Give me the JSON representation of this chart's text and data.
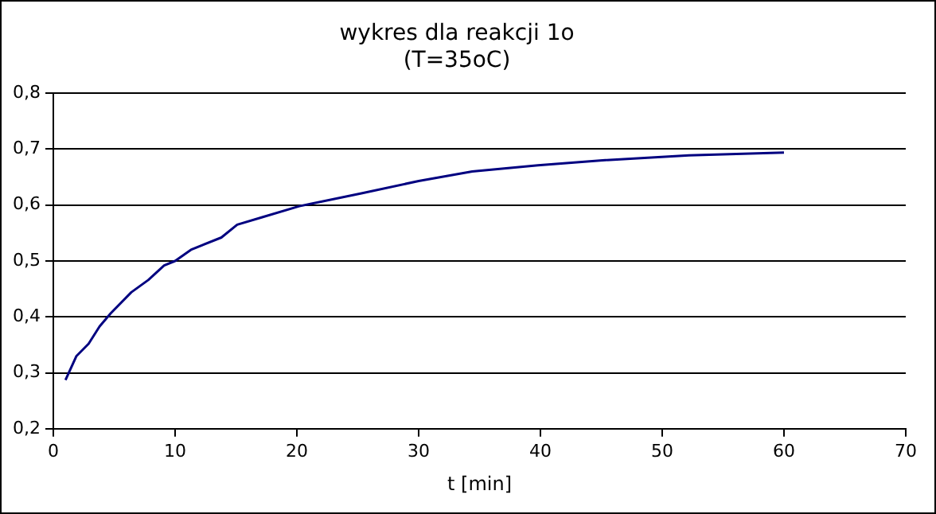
{
  "chart_data": {
    "type": "line",
    "title": [
      "wykres dla reakcji 1o",
      "(T=35oC)"
    ],
    "xlabel": "t [min]",
    "x": [
      1,
      1.9,
      2.9,
      3.8,
      4.7,
      6.4,
      7.8,
      9.1,
      10,
      11.3,
      13.8,
      15.1,
      17.1,
      20.2,
      25.3,
      30,
      34.4,
      39.8,
      45.1,
      52.2,
      60
    ],
    "series": [
      {
        "color": "#000080",
        "values": [
          0.287,
          0.33,
          0.352,
          0.383,
          0.406,
          0.444,
          0.466,
          0.492,
          0.5,
          0.52,
          0.542,
          0.565,
          0.578,
          0.598,
          0.621,
          0.643,
          0.66,
          0.671,
          0.68,
          0.689,
          0.694
        ]
      }
    ],
    "xlim": [
      0,
      70
    ],
    "xticks": [
      0,
      10,
      20,
      30,
      40,
      50,
      60,
      70
    ],
    "ylim": [
      0.2,
      0.8
    ],
    "yticks": [
      {
        "value": 0.2,
        "label": "0,2"
      },
      {
        "value": 0.3,
        "label": "0,3"
      },
      {
        "value": 0.4,
        "label": "0,4"
      },
      {
        "value": 0.5,
        "label": "0,5"
      },
      {
        "value": 0.6,
        "label": "0,6"
      },
      {
        "value": 0.7,
        "label": "0,7"
      },
      {
        "value": 0.8,
        "label": "0,8"
      }
    ],
    "grid": "y",
    "legend": false,
    "marker": "none",
    "line_style": "solid"
  }
}
